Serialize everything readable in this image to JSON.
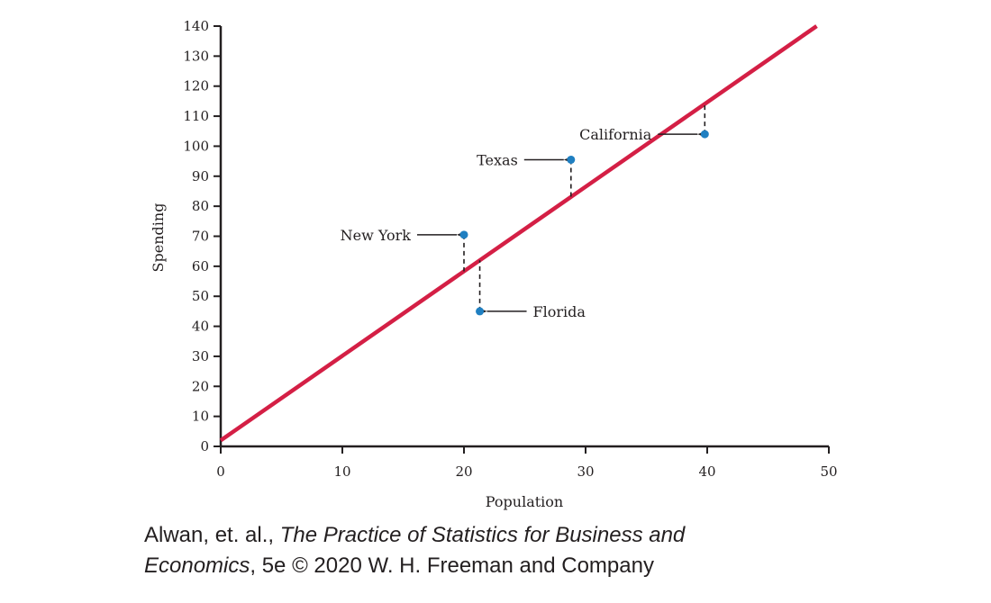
{
  "chart_data": {
    "type": "scatter",
    "title": "",
    "xlabel": "Population",
    "ylabel": "Spending",
    "xlim": [
      0,
      50
    ],
    "ylim": [
      0,
      140
    ],
    "x_ticks": [
      0,
      10,
      20,
      30,
      40,
      50
    ],
    "y_ticks": [
      0,
      10,
      20,
      30,
      40,
      50,
      60,
      70,
      80,
      90,
      100,
      110,
      120,
      130,
      140
    ],
    "grid": false,
    "points": [
      {
        "label": "New York",
        "x": 20,
        "y": 70.5
      },
      {
        "label": "Texas",
        "x": 28.8,
        "y": 95.5
      },
      {
        "label": "California",
        "x": 39.8,
        "y": 104
      },
      {
        "label": "Florida",
        "x": 21.3,
        "y": 45
      }
    ],
    "regression_line": {
      "x": [
        0,
        49
      ],
      "y": [
        2,
        140
      ],
      "color": "#d41f45"
    },
    "point_color": "#1f7fc1"
  },
  "credit": {
    "line1_prefix": "Alwan, et. al., ",
    "line1_title": "The Practice of Statistics for Business and",
    "line2_title": "Economics",
    "line2_suffix": ", 5e © 2020 W. H. Freeman and Company"
  }
}
